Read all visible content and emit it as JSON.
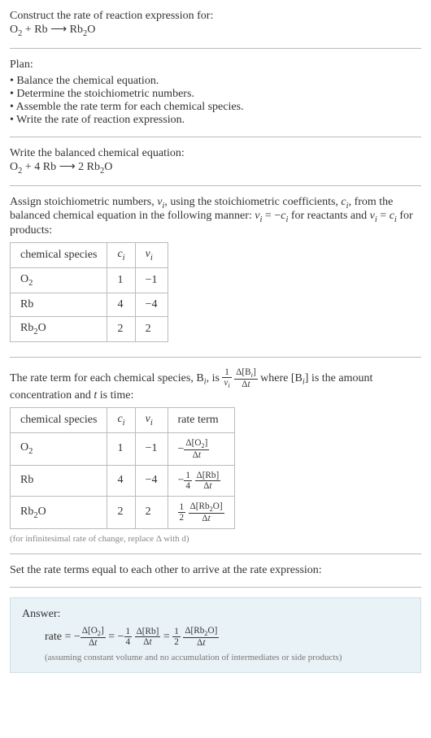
{
  "prompt": {
    "title": "Construct the rate of reaction expression for:",
    "reaction": "O₂ + Rb ⟶ Rb₂O"
  },
  "plan": {
    "label": "Plan:",
    "items": [
      "Balance the chemical equation.",
      "Determine the stoichiometric numbers.",
      "Assemble the rate term for each chemical species.",
      "Write the rate of reaction expression."
    ]
  },
  "balanced": {
    "label": "Write the balanced chemical equation:",
    "reaction": "O₂ + 4 Rb ⟶ 2 Rb₂O"
  },
  "stoich": {
    "intro_a": "Assign stoichiometric numbers, ",
    "nu": "ν",
    "sub_i": "i",
    "intro_b": ", using the stoichiometric coefficients, ",
    "c": "c",
    "intro_c": ", from the balanced chemical equation in the following manner: ",
    "eq1": "νᵢ = −cᵢ",
    "mid": " for reactants and ",
    "eq2": "νᵢ = cᵢ",
    "end": " for products:",
    "table": {
      "columns": [
        "chemical species",
        "cᵢ",
        "νᵢ"
      ],
      "rows": [
        [
          "O₂",
          "1",
          "−1"
        ],
        [
          "Rb",
          "4",
          "−4"
        ],
        [
          "Rb₂O",
          "2",
          "2"
        ]
      ]
    }
  },
  "rateterm": {
    "intro_a": "The rate term for each chemical species, B",
    "intro_b": ", is ",
    "frac1_num": "1",
    "frac1_den": "νᵢ",
    "frac2_num": "Δ[Bᵢ]",
    "frac2_den": "Δt",
    "intro_c": " where [B",
    "intro_d": "] is the amount concentration and ",
    "t": "t",
    "intro_e": " is time:",
    "table": {
      "columns": [
        "chemical species",
        "cᵢ",
        "νᵢ",
        "rate term"
      ],
      "rows": [
        {
          "species": "O₂",
          "c": "1",
          "nu": "−1",
          "neg": "−",
          "coef_num": "",
          "coef_den": "",
          "d_num": "Δ[O₂]",
          "d_den": "Δt"
        },
        {
          "species": "Rb",
          "c": "4",
          "nu": "−4",
          "neg": "−",
          "coef_num": "1",
          "coef_den": "4",
          "d_num": "Δ[Rb]",
          "d_den": "Δt"
        },
        {
          "species": "Rb₂O",
          "c": "2",
          "nu": "2",
          "neg": "",
          "coef_num": "1",
          "coef_den": "2",
          "d_num": "Δ[Rb₂O]",
          "d_den": "Δt"
        }
      ]
    },
    "note": "(for infinitesimal rate of change, replace Δ with d)"
  },
  "set_equal": "Set the rate terms equal to each other to arrive at the rate expression:",
  "answer": {
    "label": "Answer:",
    "rate_prefix": "rate = ",
    "t1_neg": "−",
    "t1_num": "Δ[O₂]",
    "t1_den": "Δt",
    "eq": " = ",
    "t2_neg": "−",
    "t2_cnum": "1",
    "t2_cden": "4",
    "t2_num": "Δ[Rb]",
    "t2_den": "Δt",
    "t3_cnum": "1",
    "t3_cden": "2",
    "t3_num": "Δ[Rb₂O]",
    "t3_den": "Δt",
    "note": "(assuming constant volume and no accumulation of intermediates or side products)"
  }
}
